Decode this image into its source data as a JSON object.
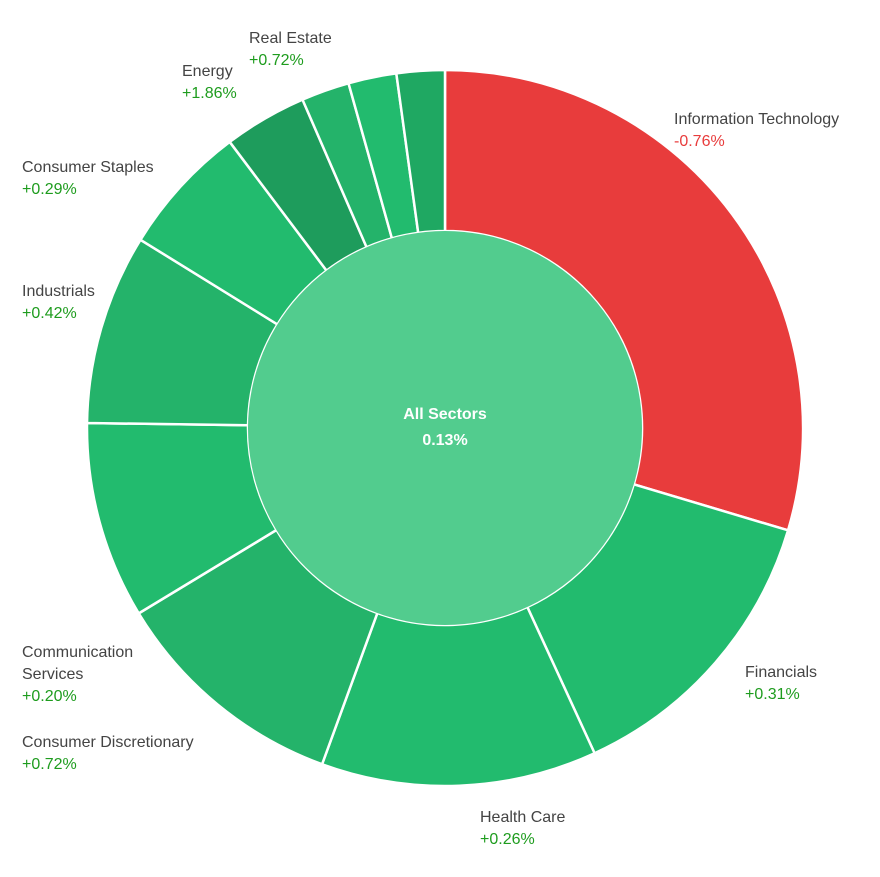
{
  "chart_data": {
    "type": "sunburst",
    "center": {
      "label": "All Sectors",
      "change": "0.13%",
      "color": "#52cc8e"
    },
    "colors": {
      "positive": "#22bb6e",
      "negative": "#e83c3c",
      "positive_dark": "#1e9c5c",
      "label_positive": "#1e9c1e",
      "label_negative": "#e83c3c",
      "label_name": "#444444"
    },
    "sectors": [
      {
        "name": "Information Technology",
        "change": "-0.76%",
        "weight": 30.0,
        "color": "#e83c3c"
      },
      {
        "name": "Financials",
        "change": "+0.31%",
        "weight": 13.7,
        "color": "#22bb6e"
      },
      {
        "name": "Health Care",
        "change": "+0.26%",
        "weight": 12.6,
        "color": "#22bb6e"
      },
      {
        "name": "Consumer Discretionary",
        "change": "+0.72%",
        "weight": 10.9,
        "color": "#24b36a"
      },
      {
        "name": "Communication Services",
        "change": "+0.20%",
        "weight": 9.0,
        "color": "#22bb6e"
      },
      {
        "name": "Industrials",
        "change": "+0.42%",
        "weight": 8.7,
        "color": "#24b36a"
      },
      {
        "name": "Consumer Staples",
        "change": "+0.29%",
        "weight": 6.0,
        "color": "#22bb6e"
      },
      {
        "name": "Energy",
        "change": "+1.86%",
        "weight": 3.8,
        "color": "#1e9c5c"
      },
      {
        "name": "",
        "change": "",
        "weight": 2.2,
        "color": "#24b36a"
      },
      {
        "name": "",
        "change": "",
        "weight": 2.2,
        "color": "#22bb6e"
      },
      {
        "name": "Real Estate",
        "change": "+0.72%",
        "weight": 2.2,
        "color": "#1fa862"
      }
    ]
  }
}
